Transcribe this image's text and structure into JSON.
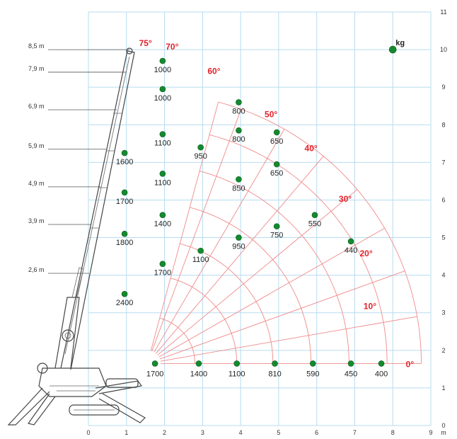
{
  "chart_data": {
    "type": "scatter",
    "title": "",
    "x_unit": "m",
    "y_ticks": [
      "0",
      "1",
      "2",
      "3",
      "4",
      "5",
      "6",
      "7",
      "8",
      "9",
      "10",
      "11"
    ],
    "x_ticks": [
      "0",
      "1",
      "2",
      "3",
      "4",
      "5",
      "6",
      "7",
      "8",
      "9"
    ],
    "xlim": [
      0,
      9
    ],
    "ylim": [
      0,
      11
    ],
    "grid": true,
    "legend_unit": "kg",
    "hook_heights": [
      {
        "label": "8,5 m",
        "y": 10.0
      },
      {
        "label": "7,9 m",
        "y": 9.4
      },
      {
        "label": "6,9 m",
        "y": 8.4
      },
      {
        "label": "5,9 m",
        "y": 7.35
      },
      {
        "label": "4,9 m",
        "y": 6.35
      },
      {
        "label": "3,9 m",
        "y": 5.35
      },
      {
        "label": "2,6 m",
        "y": 4.05
      }
    ],
    "boom_angles": [
      "0°",
      "10°",
      "20°",
      "30°",
      "40°",
      "50°",
      "60°",
      "70°",
      "75°"
    ],
    "load_points": [
      {
        "x": 1.75,
        "y": 1.65,
        "kg": "1700"
      },
      {
        "x": 2.9,
        "y": 1.65,
        "kg": "1400"
      },
      {
        "x": 3.9,
        "y": 1.65,
        "kg": "1100"
      },
      {
        "x": 4.9,
        "y": 1.65,
        "kg": "810"
      },
      {
        "x": 5.9,
        "y": 1.65,
        "kg": "590"
      },
      {
        "x": 6.9,
        "y": 1.65,
        "kg": "450"
      },
      {
        "x": 7.7,
        "y": 1.65,
        "kg": "400"
      },
      {
        "x": 0.95,
        "y": 3.5,
        "kg": "2400"
      },
      {
        "x": 1.95,
        "y": 4.3,
        "kg": "1700"
      },
      {
        "x": 2.95,
        "y": 4.65,
        "kg": "1100"
      },
      {
        "x": 3.95,
        "y": 5.0,
        "kg": "950"
      },
      {
        "x": 4.95,
        "y": 5.3,
        "kg": "750"
      },
      {
        "x": 5.95,
        "y": 5.6,
        "kg": "550"
      },
      {
        "x": 6.9,
        "y": 4.9,
        "kg": "440"
      },
      {
        "x": 0.95,
        "y": 5.1,
        "kg": "1800"
      },
      {
        "x": 1.95,
        "y": 5.6,
        "kg": "1400"
      },
      {
        "x": 0.95,
        "y": 6.2,
        "kg": "1700"
      },
      {
        "x": 1.95,
        "y": 6.7,
        "kg": "1100"
      },
      {
        "x": 3.95,
        "y": 6.55,
        "kg": "850"
      },
      {
        "x": 4.95,
        "y": 6.95,
        "kg": "650"
      },
      {
        "x": 0.95,
        "y": 7.25,
        "kg": "1600"
      },
      {
        "x": 1.95,
        "y": 7.75,
        "kg": "1100"
      },
      {
        "x": 2.95,
        "y": 7.4,
        "kg": "950"
      },
      {
        "x": 3.95,
        "y": 7.85,
        "kg": "800"
      },
      {
        "x": 4.95,
        "y": 7.8,
        "kg": "650"
      },
      {
        "x": 3.95,
        "y": 8.6,
        "kg": "800"
      },
      {
        "x": 1.95,
        "y": 8.95,
        "kg": "1000"
      },
      {
        "x": 1.95,
        "y": 9.7,
        "kg": "1000"
      }
    ],
    "legend_point": {
      "x": 8.0,
      "y": 10.0
    }
  }
}
